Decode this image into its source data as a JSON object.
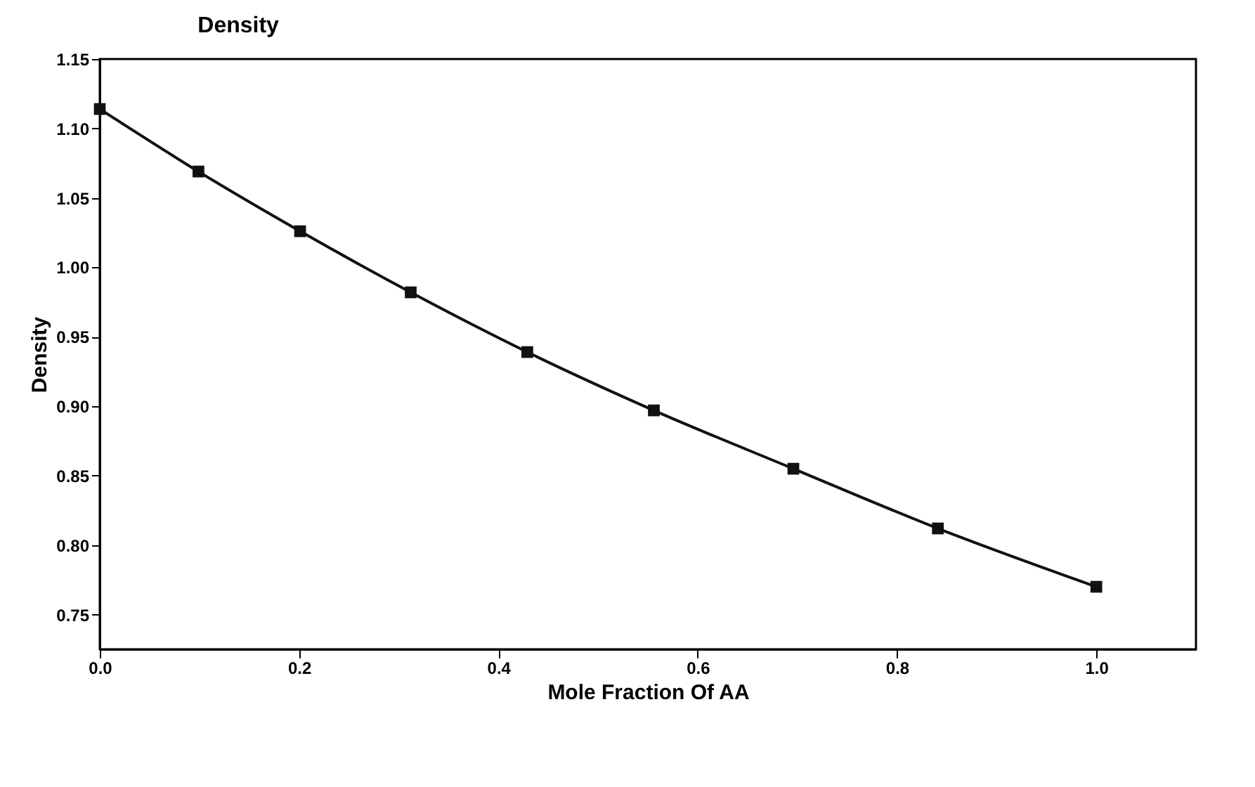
{
  "chart_data": {
    "type": "line",
    "title": "Density",
    "xlabel": "Mole Fraction Of AA",
    "ylabel": "Density",
    "x": [
      0,
      0.099,
      0.201,
      0.312,
      0.429,
      0.556,
      0.696,
      0.841,
      1.0
    ],
    "series": [
      {
        "color": "#111111",
        "values": [
          1.114,
          1.069,
          1.026,
          0.982,
          0.939,
          0.897,
          0.855,
          0.812,
          0.77
        ]
      }
    ],
    "xlim": [
      0,
      1.1
    ],
    "xticks": [
      {
        "value": 0,
        "label": "0.0"
      },
      {
        "value": 0.2,
        "label": "0.2"
      },
      {
        "value": 0.4,
        "label": "0.4"
      },
      {
        "value": 0.6,
        "label": "0.6"
      },
      {
        "value": 0.8,
        "label": "0.8"
      },
      {
        "value": 1,
        "label": "1.0"
      }
    ],
    "ylim": [
      0.725,
      1.15
    ],
    "yticks": [
      {
        "value": 0.75,
        "label": "0.75"
      },
      {
        "value": 0.8,
        "label": "0.80"
      },
      {
        "value": 0.85,
        "label": "0.85"
      },
      {
        "value": 0.9,
        "label": "0.90"
      },
      {
        "value": 0.95,
        "label": "0.95"
      },
      {
        "value": 1,
        "label": "1.00"
      },
      {
        "value": 1.05,
        "label": "1.05"
      },
      {
        "value": 1.1,
        "label": "1.10"
      },
      {
        "value": 1.15,
        "label": "1.15"
      }
    ],
    "grid": false,
    "legend": false,
    "marker": "square",
    "line_style": "solid"
  }
}
